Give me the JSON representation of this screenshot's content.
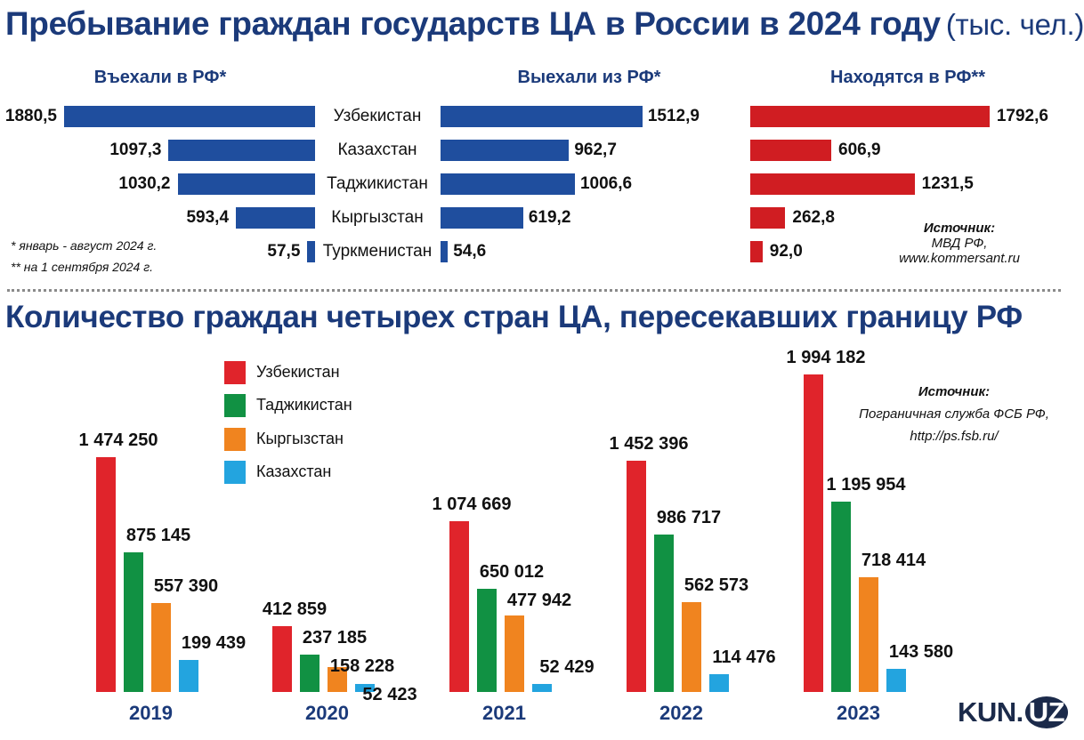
{
  "top": {
    "title": "Пребывание граждан государств ЦА в России в 2024 году",
    "unit": "(тыс. чел.)",
    "col_entered": "Въехали в РФ*",
    "col_left": "Выехали из РФ*",
    "col_present": "Находятся в РФ**",
    "note1": "* январь - август 2024 г.",
    "note2": "** на 1 сентября 2024 г.",
    "source_title": "Источник:",
    "source_line1": "МВД РФ,",
    "source_line2": "www.kommersant.ru"
  },
  "bottom": {
    "title": "Количество граждан четырех стран ЦА, пересекавших границу РФ",
    "source_title": "Источник:",
    "source_line1": "Пограничная служба ФСБ РФ,",
    "source_line2": "http://ps.fsb.ru/"
  },
  "logo": {
    "main": "KUN.",
    "circle": "UZ"
  },
  "colors": {
    "blue_bar": "#1f4e9e",
    "red_bar": "#d01d22",
    "uz": "#e0242b",
    "tj": "#119143",
    "kg": "#f0841f",
    "kz": "#23a4df",
    "title": "#1b3a7a"
  },
  "chart_data": [
    {
      "type": "bar",
      "orientation": "horizontal",
      "title": "Пребывание граждан государств ЦА в России в 2024 году (тыс. чел.)",
      "categories": [
        "Узбекистан",
        "Казахстан",
        "Таджикистан",
        "Кыргызстан",
        "Туркменистан"
      ],
      "series": [
        {
          "name": "Въехали в РФ*",
          "values": [
            1880.5,
            1097.3,
            1030.2,
            593.4,
            57.5
          ],
          "labels": [
            "1880,5",
            "1097,3",
            "1030,2",
            "593,4",
            "57,5"
          ]
        },
        {
          "name": "Выехали из РФ*",
          "values": [
            1512.9,
            962.7,
            1006.6,
            619.2,
            54.6
          ],
          "labels": [
            "1512,9",
            "962,7",
            "1006,6",
            "619,2",
            "54,6"
          ]
        },
        {
          "name": "Находятся в РФ**",
          "values": [
            1792.6,
            606.9,
            1231.5,
            262.8,
            92.0
          ],
          "labels": [
            "1792,6",
            "606,9",
            "1231,5",
            "262,8",
            "92,0"
          ]
        }
      ]
    },
    {
      "type": "bar",
      "title": "Количество граждан четырех стран ЦА, пересекавших границу РФ",
      "categories": [
        "2019",
        "2020",
        "2021",
        "2022",
        "2023"
      ],
      "series": [
        {
          "name": "Узбекистан",
          "values": [
            1474250,
            412859,
            1074669,
            1452396,
            1994182
          ],
          "labels": [
            "1 474 250",
            "412 859",
            "1 074 669",
            "1 452 396",
            "1 994 182"
          ]
        },
        {
          "name": "Таджикистан",
          "values": [
            875145,
            237185,
            650012,
            986717,
            1195954
          ],
          "labels": [
            "875 145",
            "237 185",
            "650 012",
            "986 717",
            "1 195 954"
          ]
        },
        {
          "name": "Кыргызстан",
          "values": [
            557390,
            158228,
            477942,
            562573,
            718414
          ],
          "labels": [
            "557 390",
            "158 228",
            "477 942",
            "562 573",
            "718 414"
          ]
        },
        {
          "name": "Казахстан",
          "values": [
            199439,
            52423,
            52429,
            114476,
            143580
          ],
          "labels": [
            "199 439",
            "52 423",
            "52 429",
            "114 476",
            "143 580"
          ]
        }
      ]
    }
  ]
}
